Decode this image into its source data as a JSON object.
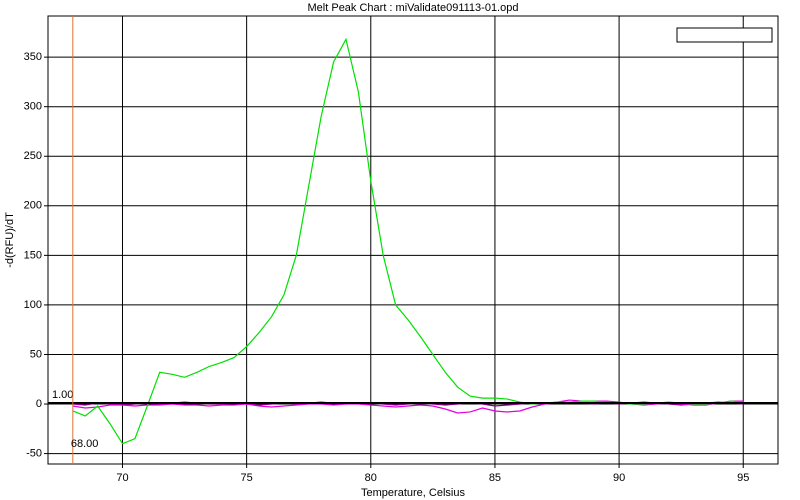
{
  "chart_data": {
    "type": "line",
    "title": "Melt Peak Chart : miValidate091113-01.opd",
    "x_label": "Temperature, Celsius",
    "y_label": "-d(RFU)/dT",
    "x": [
      68,
      68.5,
      69,
      69.5,
      70,
      70.5,
      71,
      71.5,
      72,
      72.5,
      73,
      73.5,
      74,
      74.5,
      75,
      75.5,
      76,
      76.5,
      77,
      77.5,
      78,
      78.5,
      79,
      79.5,
      80,
      80.5,
      81,
      81.5,
      82,
      82.5,
      83,
      83.5,
      84,
      84.5,
      85,
      85.5,
      86,
      86.5,
      87,
      87.5,
      88,
      88.5,
      89,
      89.5,
      90,
      90.5,
      91,
      91.5,
      92,
      92.5,
      93,
      93.5,
      94,
      94.5,
      95
    ],
    "series": [
      {
        "color": "#800080",
        "values": [
          0,
          -1,
          1,
          0,
          -1,
          0,
          1,
          0,
          1,
          2,
          1,
          0,
          0,
          1,
          0,
          -1,
          0,
          1,
          0,
          1,
          2,
          1,
          0,
          1,
          1,
          0,
          -1,
          0,
          1,
          0,
          -1,
          0,
          1,
          0,
          -2,
          -1,
          0,
          1,
          0,
          1,
          2,
          1,
          0,
          1,
          0,
          1,
          2,
          1,
          0,
          -1,
          0,
          1,
          2,
          1,
          0
        ]
      },
      {
        "color": "#e000e0",
        "values": [
          -2,
          -4,
          -3,
          -1,
          -1,
          -2,
          -1,
          -1,
          0,
          -1,
          -1,
          -2,
          -1,
          -1,
          0,
          -2,
          -3,
          -2,
          -1,
          0,
          0,
          -1,
          0,
          0,
          -1,
          -2,
          -3,
          -2,
          -1,
          -2,
          -5,
          -9,
          -8,
          -4,
          -7,
          -8,
          -7,
          -3,
          0,
          2,
          4,
          3,
          3,
          3,
          2,
          0,
          -1,
          0,
          1,
          0,
          -1,
          -1,
          1,
          3,
          3
        ]
      },
      {
        "color": "#00e000",
        "values": [
          -7,
          -12,
          -2,
          -20,
          -40,
          -35,
          -2,
          32,
          30,
          27,
          32,
          38,
          42,
          47,
          58,
          72,
          88,
          110,
          150,
          220,
          290,
          345,
          368,
          315,
          225,
          150,
          100,
          85,
          68,
          50,
          32,
          17,
          8,
          6,
          6,
          5,
          2,
          0,
          1,
          2,
          2,
          3,
          3,
          2,
          1,
          0,
          0,
          1,
          2,
          1,
          0,
          0,
          1,
          3,
          2
        ]
      }
    ],
    "xlim": [
      67,
      96.4
    ],
    "ylim": [
      -60.5,
      391.5
    ],
    "xticks": [
      70,
      75,
      80,
      85,
      90,
      95
    ],
    "yticks": [
      -50,
      0,
      50,
      100,
      150,
      200,
      250,
      300,
      350
    ],
    "grid": true,
    "threshold": {
      "value": 1,
      "label": "1.00"
    },
    "marker_x": {
      "value": 68,
      "label": "68.00"
    }
  }
}
